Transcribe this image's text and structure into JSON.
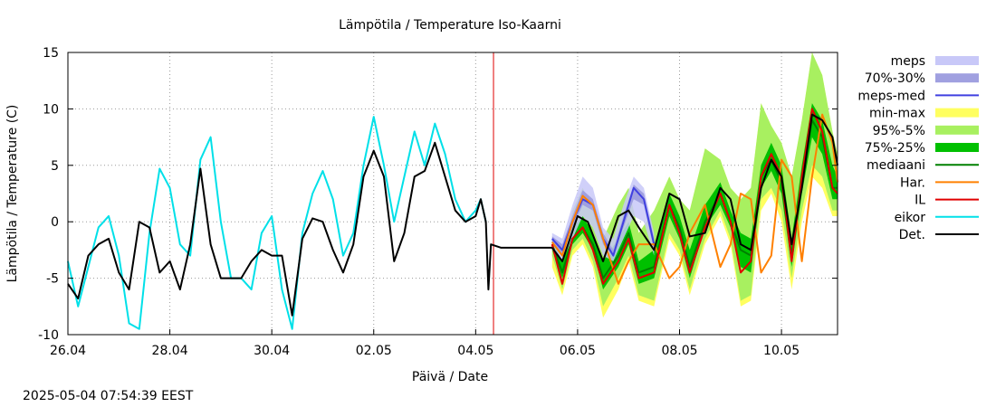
{
  "timestamp": "2025-05-04  07:54:39 EEST",
  "chart_data": {
    "type": "line",
    "title": "Lämpötila / Temperature   Iso-Kaarni",
    "xlabel": "Päivä / Date",
    "ylabel": "Lämpötila / Temperature (C)",
    "ylim": [
      -10,
      15
    ],
    "yticks": [
      -10,
      -5,
      0,
      5,
      10,
      15
    ],
    "xlim": [
      0,
      15.1
    ],
    "x_unit": "days since 26.04",
    "xtick_values": [
      0,
      2,
      4,
      6,
      8,
      10,
      12,
      14
    ],
    "xtick_labels": [
      "26.04",
      "28.04",
      "30.04",
      "02.05",
      "04.05",
      "06.05",
      "08.05",
      "10.05"
    ],
    "grid": "dotted",
    "now_marker_x": 8.35,
    "now_marker_color": "#e00000",
    "legend_position": "right",
    "legend": [
      {
        "label": "meps",
        "color": "#c8c8f8",
        "kind": "band"
      },
      {
        "label": "70%-30%",
        "color": "#a0a0e0",
        "kind": "band"
      },
      {
        "label": "meps-med",
        "color": "#4040e0",
        "kind": "line"
      },
      {
        "label": "min-max",
        "color": "#ffff60",
        "kind": "band"
      },
      {
        "label": "95%-5%",
        "color": "#a8f060",
        "kind": "band"
      },
      {
        "label": "75%-25%",
        "color": "#00c000",
        "kind": "band"
      },
      {
        "label": "mediaani",
        "color": "#008000",
        "kind": "line"
      },
      {
        "label": "Har.",
        "color": "#ff8000",
        "kind": "line"
      },
      {
        "label": "IL",
        "color": "#e00000",
        "kind": "line"
      },
      {
        "label": "eikor",
        "color": "#00e0e8",
        "kind": "line"
      },
      {
        "label": "Det.",
        "color": "#000000",
        "kind": "line"
      }
    ],
    "series": [
      {
        "name": "eikor",
        "color": "#00e0e8",
        "x": [
          0,
          0.2,
          0.4,
          0.6,
          0.8,
          1.0,
          1.2,
          1.4,
          1.6,
          1.8,
          2.0,
          2.2,
          2.4,
          2.6,
          2.8,
          3.0,
          3.2,
          3.4,
          3.6,
          3.8,
          4.0,
          4.2,
          4.4,
          4.6,
          4.8,
          5.0,
          5.2,
          5.4,
          5.6,
          5.8,
          6.0,
          6.2,
          6.4,
          6.6,
          6.8,
          7.0,
          7.2,
          7.4,
          7.6,
          7.8,
          8.0,
          8.1,
          8.2
        ],
        "y": [
          -3.5,
          -7.5,
          -4,
          -0.5,
          0.5,
          -3,
          -9,
          -9.5,
          -1,
          4.7,
          3,
          -2,
          -3,
          5.5,
          7.5,
          0,
          -5,
          -5,
          -6,
          -1,
          0.5,
          -6,
          -9.5,
          -1,
          2.5,
          4.5,
          2,
          -3,
          -1,
          5,
          9.3,
          5,
          0,
          4,
          8,
          5,
          8.7,
          6,
          2,
          0,
          1,
          2,
          0
        ]
      },
      {
        "name": "Det.",
        "color": "#000000",
        "x": [
          0,
          0.2,
          0.4,
          0.6,
          0.8,
          1.0,
          1.2,
          1.4,
          1.6,
          1.8,
          2.0,
          2.2,
          2.4,
          2.6,
          2.8,
          3.0,
          3.2,
          3.4,
          3.6,
          3.8,
          4.0,
          4.2,
          4.4,
          4.6,
          4.8,
          5.0,
          5.2,
          5.4,
          5.6,
          5.8,
          6.0,
          6.2,
          6.4,
          6.6,
          6.8,
          7.0,
          7.2,
          7.4,
          7.6,
          7.8,
          8.0,
          8.1,
          8.2,
          8.25,
          8.3,
          8.5,
          9.0,
          9.5
        ],
        "y": [
          -5.5,
          -6.8,
          -3,
          -2,
          -1.5,
          -4.5,
          -6,
          0,
          -0.5,
          -4.5,
          -3.5,
          -6,
          -2,
          4.7,
          -2,
          -5,
          -5,
          -5,
          -3.5,
          -2.5,
          -3,
          -3,
          -8.3,
          -1.5,
          0.3,
          0,
          -2.5,
          -4.5,
          -2,
          4,
          6.3,
          4,
          -3.5,
          -1,
          4,
          4.5,
          7,
          4,
          1,
          0,
          0.5,
          2,
          0,
          -6,
          -2,
          -2.3,
          -2.3,
          -2.3
        ]
      },
      {
        "name": "Det. (forecast)",
        "color": "#000000",
        "x": [
          9.5,
          9.7,
          10.0,
          10.2,
          10.5,
          10.8,
          11.0,
          11.2,
          11.5,
          11.8,
          12.0,
          12.2,
          12.5,
          12.8,
          13.0,
          13.2,
          13.4,
          13.6,
          13.8,
          14.0,
          14.2,
          14.4,
          14.6,
          14.8,
          15.0,
          15.1
        ],
        "y": [
          -2.3,
          -3.5,
          0.5,
          0,
          -3.5,
          0.5,
          1,
          -0.5,
          -2.5,
          2.5,
          2,
          -1.3,
          -1,
          3,
          2,
          -2,
          -2.5,
          3,
          5.5,
          4,
          -2,
          3,
          9.5,
          9,
          7.5,
          5
        ]
      },
      {
        "name": "Har.",
        "color": "#ff8000",
        "x": [
          9.5,
          9.7,
          9.9,
          10.1,
          10.3,
          10.5,
          10.8,
          11.0,
          11.2,
          11.5,
          11.8,
          12.0,
          12.2,
          12.5,
          12.8,
          13.0,
          13.2,
          13.4,
          13.6,
          13.8,
          14.0,
          14.2,
          14.4,
          14.6,
          14.8,
          15.0,
          15.1
        ],
        "y": [
          -1.8,
          -3,
          0,
          2.3,
          1.5,
          -1.5,
          -5.5,
          -3.5,
          -2,
          -2,
          -5,
          -4,
          -1,
          1.5,
          -4,
          -2,
          2.5,
          2,
          -4.5,
          -3,
          5.5,
          4,
          -3.5,
          4,
          9.5,
          7,
          3.5
        ]
      },
      {
        "name": "IL",
        "color": "#e00000",
        "x": [
          9.5,
          9.7,
          9.9,
          10.1,
          10.3,
          10.5,
          10.8,
          11.0,
          11.2,
          11.5,
          11.8,
          12.0,
          12.2,
          12.5,
          12.8,
          13.0,
          13.2,
          13.4,
          13.6,
          13.8,
          14.0,
          14.2,
          14.4,
          14.6,
          14.8,
          15.0,
          15.1
        ],
        "y": [
          -2,
          -5.5,
          -1.5,
          -0.5,
          -2.5,
          -5.5,
          -3.5,
          -1.5,
          -5,
          -4.5,
          1.5,
          -1,
          -4.5,
          -0.5,
          2.5,
          0,
          -4.5,
          -3.5,
          4,
          6,
          4,
          -3.5,
          4,
          10,
          8,
          3,
          2.5
        ]
      },
      {
        "name": "mediaani",
        "color": "#008000",
        "x": [
          9.5,
          9.7,
          9.9,
          10.1,
          10.3,
          10.5,
          10.8,
          11.0,
          11.2,
          11.5,
          11.8,
          12.0,
          12.2,
          12.5,
          12.8,
          13.0,
          13.2,
          13.4,
          13.6,
          13.8,
          14.0,
          14.2,
          14.4,
          14.6,
          14.8,
          15.0,
          15.1
        ],
        "y": [
          -2,
          -4.5,
          -1.5,
          -0.5,
          -2,
          -5,
          -3,
          -1,
          -4.5,
          -4,
          1.5,
          -0.5,
          -4,
          0,
          2.5,
          0,
          -2.5,
          -3,
          4,
          5.5,
          3.5,
          -3,
          3.5,
          9,
          7.5,
          3,
          3
        ]
      },
      {
        "name": "meps-med",
        "color": "#4040e0",
        "x": [
          9.5,
          9.7,
          9.9,
          10.1,
          10.3,
          10.5,
          10.7,
          10.9,
          11.1,
          11.3,
          11.5
        ],
        "y": [
          -1.5,
          -2.5,
          0,
          2,
          1.5,
          -1.5,
          -3,
          0,
          3,
          2,
          -2
        ]
      }
    ],
    "bands": [
      {
        "name": "min-max",
        "color": "#ffff60",
        "x": [
          9.5,
          9.7,
          9.9,
          10.1,
          10.3,
          10.5,
          10.8,
          11.0,
          11.2,
          11.5,
          11.8,
          12.0,
          12.2,
          12.5,
          12.8,
          13.0,
          13.2,
          13.4,
          13.6,
          13.8,
          14.0,
          14.2,
          14.4,
          14.6,
          14.8,
          15.0,
          15.1
        ],
        "low": [
          -4,
          -6.5,
          -3,
          -2,
          -4,
          -8.5,
          -6,
          -3.5,
          -7,
          -7.5,
          -1.5,
          -3,
          -6.5,
          -2,
          0.5,
          -2,
          -7.5,
          -7,
          1,
          2.5,
          0,
          -6,
          0,
          4,
          3,
          0.5,
          0.5
        ],
        "high": [
          -1.5,
          -3.5,
          1,
          3,
          1,
          -1.5,
          1.5,
          3,
          -1,
          1,
          4,
          2,
          1,
          6.5,
          5.5,
          3,
          2,
          3,
          10.5,
          8.5,
          7,
          4,
          9,
          15,
          13,
          8,
          6
        ]
      },
      {
        "name": "95%-5%",
        "color": "#a8f060",
        "x": [
          9.5,
          9.7,
          9.9,
          10.1,
          10.3,
          10.5,
          10.8,
          11.0,
          11.2,
          11.5,
          11.8,
          12.0,
          12.2,
          12.5,
          12.8,
          13.0,
          13.2,
          13.4,
          13.6,
          13.8,
          14.0,
          14.2,
          14.4,
          14.6,
          14.8,
          15.0,
          15.1
        ],
        "low": [
          -3,
          -6,
          -2.5,
          -1.5,
          -3.5,
          -7.5,
          -5,
          -3,
          -6.5,
          -7,
          -1,
          -2.5,
          -6,
          -1.5,
          1,
          -1.5,
          -7,
          -6.5,
          2,
          3,
          1,
          -5,
          1,
          5,
          4,
          1,
          1
        ]
      },
      {
        "name": "75%-25%",
        "color": "#00c000",
        "x": [
          9.5,
          9.7,
          9.9,
          10.1,
          10.3,
          10.5,
          10.8,
          11.0,
          11.2,
          11.5,
          11.8,
          12.0,
          12.2,
          12.5,
          12.8,
          13.0,
          13.2,
          13.4,
          13.6,
          13.8,
          14.0,
          14.2,
          14.4,
          14.6,
          14.8,
          15.0,
          15.1
        ],
        "low": [
          -2.5,
          -5,
          -2,
          -1,
          -2.5,
          -6,
          -4,
          -2,
          -5.5,
          -5,
          0.5,
          -1.5,
          -5,
          -0.5,
          1.5,
          -0.5,
          -4,
          -4.5,
          3,
          4.5,
          2.5,
          -4,
          2.5,
          7.5,
          6,
          2,
          2
        ],
        "high": [
          -1.5,
          -3.5,
          -0.5,
          0.5,
          -1,
          -3.5,
          -1.5,
          0,
          -3.5,
          -2.5,
          2.5,
          0.5,
          -2.5,
          1.5,
          3.5,
          1,
          -1,
          -1.5,
          5,
          7,
          5,
          -1.5,
          5,
          10.5,
          9,
          5,
          4
        ]
      },
      {
        "name": "meps",
        "color": "#c8c8f8",
        "x": [
          9.5,
          9.7,
          9.9,
          10.1,
          10.3,
          10.5,
          10.7,
          10.9,
          11.1,
          11.3,
          11.5
        ],
        "low": [
          -2.5,
          -3.5,
          -1.5,
          0.5,
          -0.5,
          -3,
          -3.5,
          -1.5,
          0.5,
          0,
          -3
        ],
        "high": [
          -1,
          -1.5,
          1.5,
          4,
          3,
          -0.5,
          -1.5,
          1.5,
          4,
          3,
          -1
        ]
      },
      {
        "name": "70%-30%",
        "color": "#a0a0e0",
        "x": [
          9.5,
          9.7,
          9.9,
          10.1,
          10.3,
          10.5,
          10.7,
          10.9,
          11.1,
          11.3,
          11.5
        ],
        "low": [
          -2,
          -3,
          -0.5,
          1.5,
          1,
          -2,
          -3,
          -0.5,
          2,
          1.5,
          -2.5
        ],
        "high": [
          -1.3,
          -2,
          0.5,
          2.8,
          2,
          -1,
          -2.5,
          0.5,
          3.3,
          2.5,
          -1.5
        ]
      }
    ]
  }
}
